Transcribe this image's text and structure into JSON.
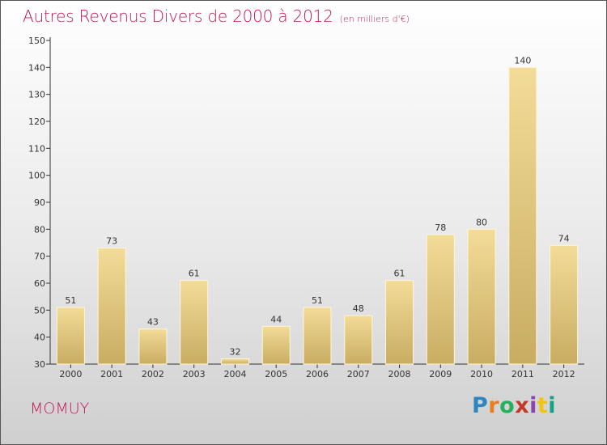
{
  "header": {
    "title": "Autres Revenus Divers de 2000 à 2012",
    "unit": "(en milliers d'€)"
  },
  "footer": {
    "commune": "MOMUY",
    "logo_letters": [
      "P",
      "r",
      "o",
      "x",
      "i",
      "t",
      "i"
    ]
  },
  "chart_data": {
    "type": "bar",
    "title": "Autres Revenus Divers de 2000 à 2012",
    "subtitle": "(en milliers d'€)",
    "xlabel": "",
    "ylabel": "",
    "categories": [
      "2000",
      "2001",
      "2002",
      "2003",
      "2004",
      "2005",
      "2006",
      "2007",
      "2008",
      "2009",
      "2010",
      "2011",
      "2012"
    ],
    "values": [
      51,
      73,
      43,
      61,
      32,
      44,
      51,
      48,
      61,
      78,
      80,
      140,
      74
    ],
    "ylim": [
      30,
      150
    ],
    "yticks": [
      30,
      40,
      50,
      60,
      70,
      80,
      90,
      100,
      110,
      120,
      130,
      140,
      150
    ],
    "grid": false,
    "legend": "none",
    "colors": {
      "bar_top": "#f3dc98",
      "bar_bottom": "#c8ac62",
      "axis": "#333333",
      "title": "#c2185b"
    }
  }
}
